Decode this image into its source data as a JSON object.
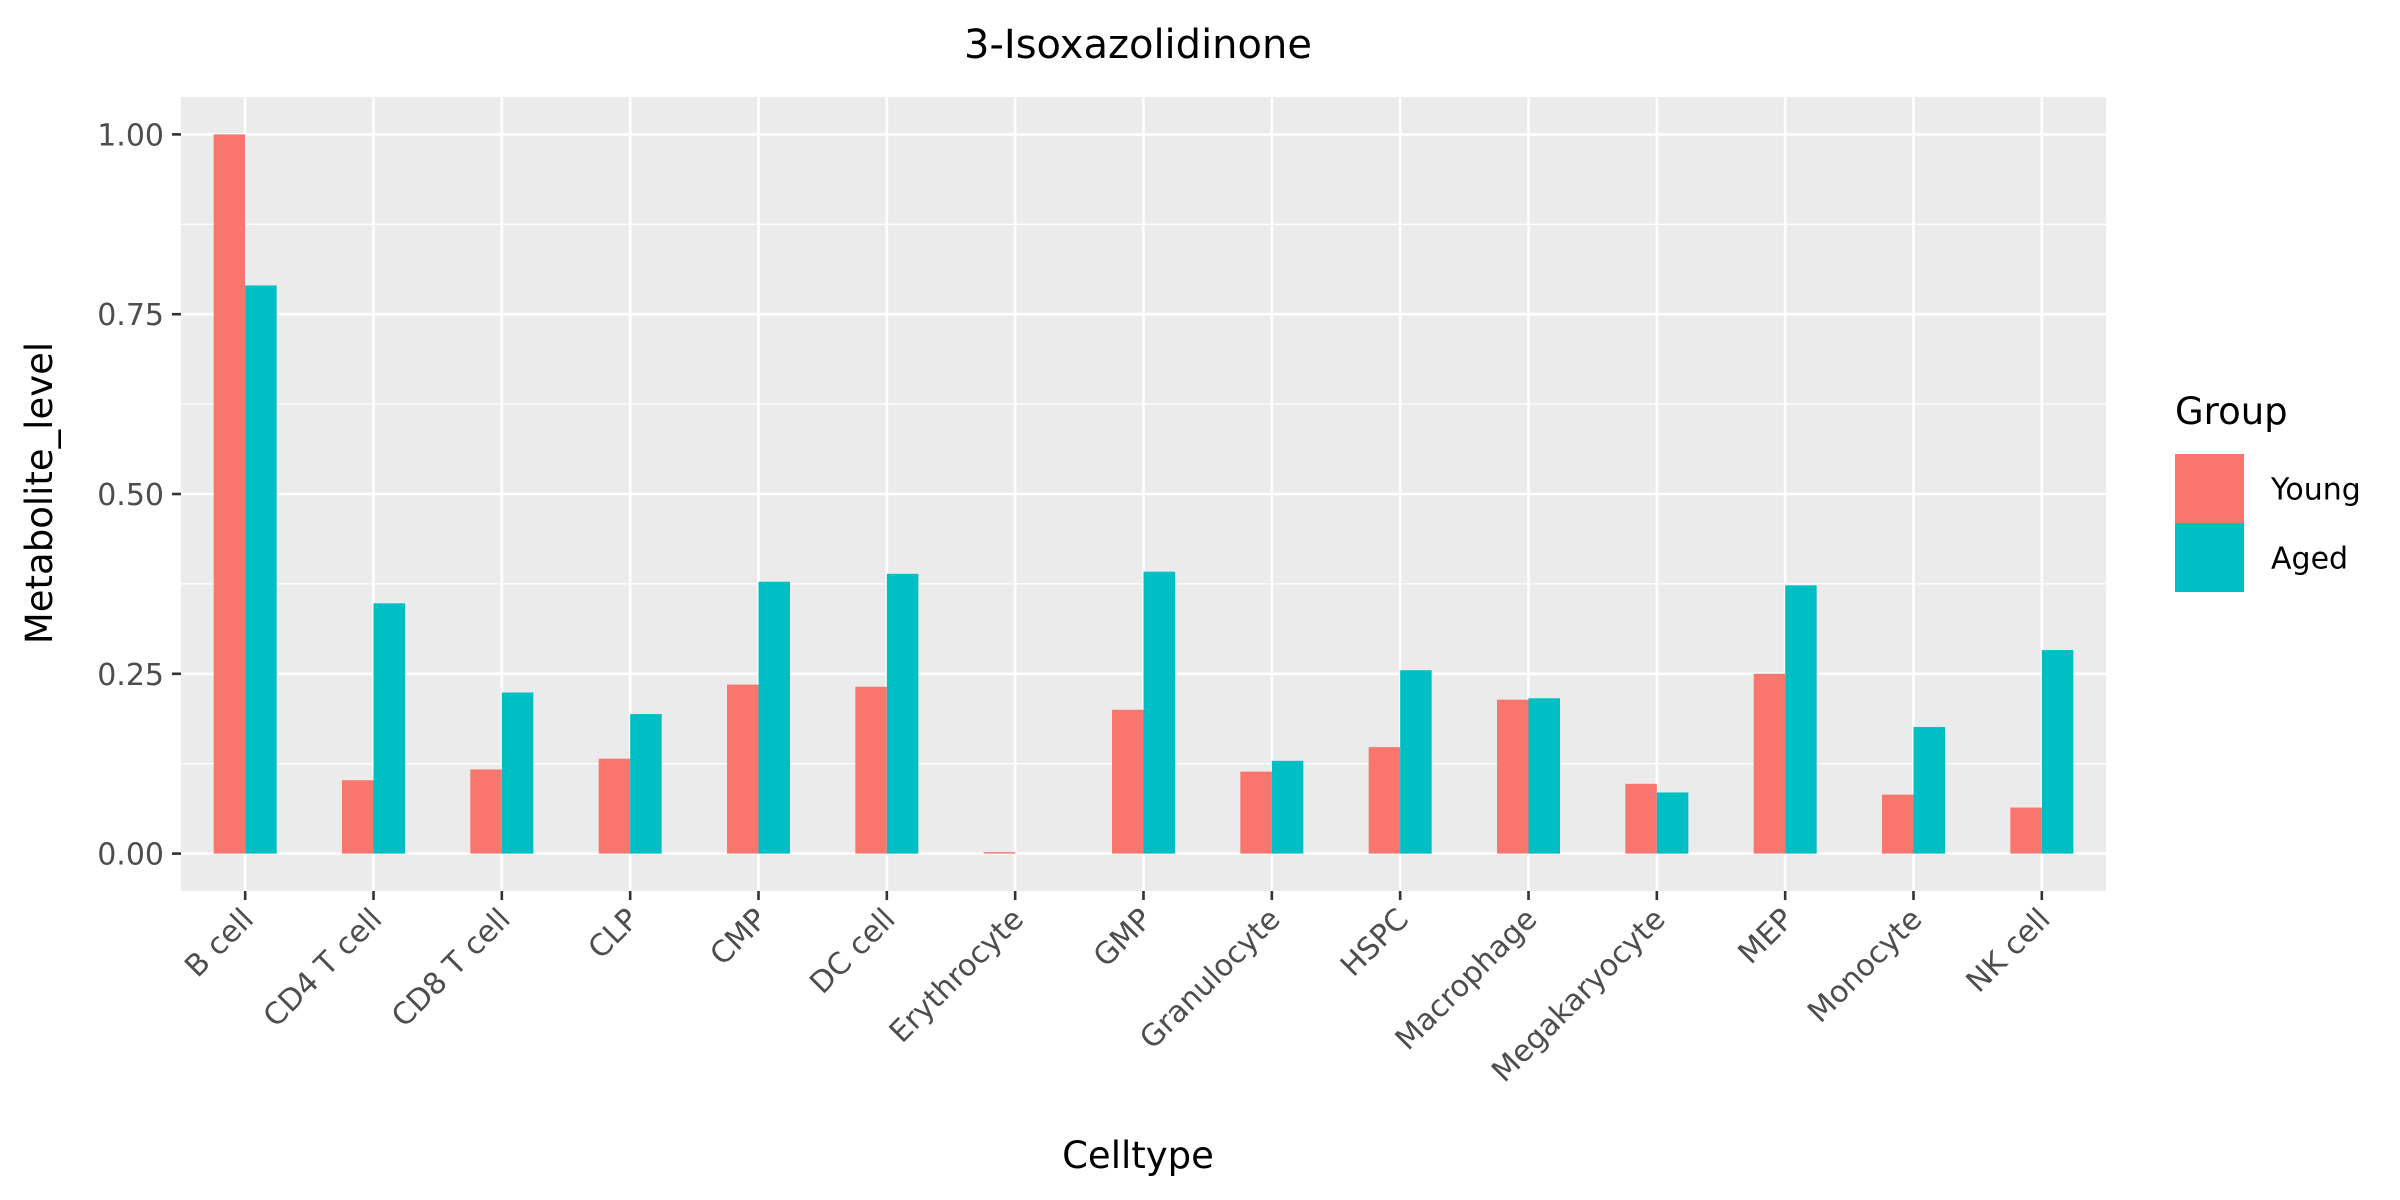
{
  "chart_data": {
    "type": "bar",
    "title": "3-Isoxazolidinone",
    "xlabel": "Celltype",
    "ylabel": "Metabolite_level",
    "ylim": [
      -0.052,
      1.052
    ],
    "yticks": [
      0.0,
      0.25,
      0.5,
      0.75,
      1.0
    ],
    "ytick_labels": [
      "0.00",
      "0.25",
      "0.50",
      "0.75",
      "1.00"
    ],
    "grid": true,
    "legend": {
      "title": "Group",
      "position": "right"
    },
    "categories": [
      "B cell",
      "CD4 T cell",
      "CD8 T cell",
      "CLP",
      "CMP",
      "DC cell",
      "Erythrocyte",
      "GMP",
      "Granulocyte",
      "HSPC",
      "Macrophage",
      "Megakaryocyte",
      "MEP",
      "Monocyte",
      "NK cell"
    ],
    "series": [
      {
        "name": "Young",
        "color": "#F8766D",
        "values": [
          1.0,
          0.102,
          0.117,
          0.132,
          0.235,
          0.232,
          0.002,
          0.2,
          0.114,
          0.148,
          0.214,
          0.097,
          0.25,
          0.082,
          0.064
        ]
      },
      {
        "name": "Aged",
        "color": "#00BFC4",
        "values": [
          0.79,
          0.348,
          0.224,
          0.194,
          0.378,
          0.389,
          0.0,
          0.392,
          0.129,
          0.255,
          0.216,
          0.085,
          0.373,
          0.176,
          0.283
        ]
      }
    ]
  },
  "colors": {
    "panel_background": "#EBEBEB",
    "grid": "#FFFFFF",
    "tick_text": "#4D4D4D",
    "tick_mark": "#333333"
  }
}
